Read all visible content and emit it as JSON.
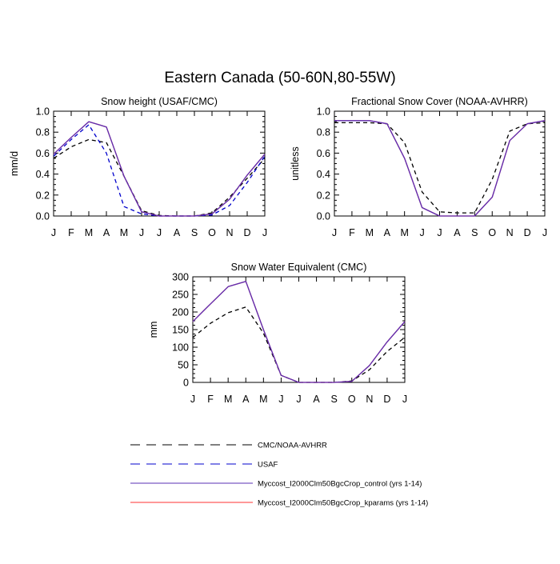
{
  "figure": {
    "title": "Eastern Canada (50-60N,80-55W)"
  },
  "months": [
    "J",
    "F",
    "M",
    "A",
    "M",
    "J",
    "J",
    "A",
    "S",
    "O",
    "N",
    "D",
    "J"
  ],
  "legend": [
    {
      "label": "CMC/NOAA-AVHRR",
      "color": "#000000",
      "style": "dashed"
    },
    {
      "label": "USAF",
      "color": "#0000cc",
      "style": "dashed"
    },
    {
      "label": "Myccost_I2000Clm50BgcCrop_control (yrs 1-14)",
      "color": "#5a2fb5",
      "style": "solid"
    },
    {
      "label": "Myccost_I2000Clm50BgcCrop_kparams (yrs 1-14)",
      "color": "#ff3333",
      "style": "solid"
    }
  ],
  "chart_data": [
    {
      "type": "line",
      "title": "Snow height (USAF/CMC)",
      "xlabel": "",
      "ylabel": "mm/d",
      "ylim": [
        0,
        1.0
      ],
      "yticks": [
        "0.0",
        "0.2",
        "0.4",
        "0.6",
        "0.8",
        "1.0"
      ],
      "ytick_values": [
        0,
        0.2,
        0.4,
        0.6,
        0.8,
        1.0
      ],
      "categories": [
        "J",
        "F",
        "M",
        "A",
        "M",
        "J",
        "J",
        "A",
        "S",
        "O",
        "N",
        "D",
        "J"
      ],
      "series": [
        {
          "name": "CMC/NOAA-AVHRR",
          "color": "#000000",
          "dash": "5,4",
          "values": [
            0.55,
            0.66,
            0.73,
            0.7,
            0.38,
            0.05,
            0.005,
            0.0,
            0.0,
            0.03,
            0.18,
            0.36,
            0.55
          ]
        },
        {
          "name": "USAF",
          "color": "#0000cc",
          "dash": "5,4",
          "values": [
            0.57,
            0.73,
            0.87,
            0.6,
            0.09,
            0.02,
            0.0,
            0.0,
            0.0,
            0.01,
            0.1,
            0.32,
            0.57
          ]
        },
        {
          "name": "Myccost_I2000Clm50BgcCrop_kparams (yrs 1-14)",
          "color": "#ff3333",
          "dash": "",
          "values": [
            0.59,
            0.75,
            0.9,
            0.85,
            0.38,
            0.04,
            0.0,
            0.0,
            0.0,
            0.02,
            0.16,
            0.39,
            0.59
          ]
        },
        {
          "name": "Myccost_I2000Clm50BgcCrop_control (yrs 1-14)",
          "color": "#5a2fb5",
          "dash": "",
          "values": [
            0.59,
            0.75,
            0.9,
            0.85,
            0.38,
            0.04,
            0.0,
            0.0,
            0.0,
            0.02,
            0.16,
            0.39,
            0.59
          ]
        }
      ]
    },
    {
      "type": "line",
      "title": "Fractional Snow Cover (NOAA-AVHRR)",
      "xlabel": "",
      "ylabel": "unitless",
      "ylim": [
        0,
        1.0
      ],
      "yticks": [
        "0.0",
        "0.2",
        "0.4",
        "0.6",
        "0.8",
        "1.0"
      ],
      "ytick_values": [
        0,
        0.2,
        0.4,
        0.6,
        0.8,
        1.0
      ],
      "categories": [
        "J",
        "F",
        "M",
        "A",
        "M",
        "J",
        "J",
        "A",
        "S",
        "O",
        "N",
        "D",
        "J"
      ],
      "series": [
        {
          "name": "CMC/NOAA-AVHRR",
          "color": "#000000",
          "dash": "5,4",
          "values": [
            0.89,
            0.89,
            0.89,
            0.88,
            0.7,
            0.23,
            0.04,
            0.03,
            0.03,
            0.35,
            0.81,
            0.88,
            0.89
          ]
        },
        {
          "name": "Myccost_I2000Clm50BgcCrop_kparams (yrs 1-14)",
          "color": "#ff3333",
          "dash": "",
          "values": [
            0.91,
            0.91,
            0.91,
            0.88,
            0.55,
            0.08,
            0.0,
            0.0,
            0.0,
            0.18,
            0.72,
            0.88,
            0.91
          ]
        },
        {
          "name": "Myccost_I2000Clm50BgcCrop_control (yrs 1-14)",
          "color": "#5a2fb5",
          "dash": "",
          "values": [
            0.91,
            0.91,
            0.91,
            0.88,
            0.55,
            0.08,
            0.0,
            0.0,
            0.0,
            0.18,
            0.72,
            0.88,
            0.91
          ]
        }
      ]
    },
    {
      "type": "line",
      "title": "Snow Water Equivalent (CMC)",
      "xlabel": "",
      "ylabel": "mm",
      "ylim": [
        0,
        300
      ],
      "yticks": [
        "0",
        "50",
        "100",
        "150",
        "200",
        "250",
        "300"
      ],
      "ytick_values": [
        0,
        50,
        100,
        150,
        200,
        250,
        300
      ],
      "categories": [
        "J",
        "F",
        "M",
        "A",
        "M",
        "J",
        "J",
        "A",
        "S",
        "O",
        "N",
        "D",
        "J"
      ],
      "series": [
        {
          "name": "CMC/NOAA-AVHRR",
          "color": "#000000",
          "dash": "5,4",
          "values": [
            128,
            168,
            198,
            214,
            140,
            20,
            0,
            0,
            0,
            4,
            36,
            88,
            128
          ]
        },
        {
          "name": "Myccost_I2000Clm50BgcCrop_kparams (yrs 1-14)",
          "color": "#ff3333",
          "dash": "",
          "values": [
            173,
            223,
            272,
            287,
            150,
            20,
            0,
            0,
            0,
            3,
            48,
            115,
            173
          ]
        },
        {
          "name": "Myccost_I2000Clm50BgcCrop_control (yrs 1-14)",
          "color": "#5a2fb5",
          "dash": "",
          "values": [
            173,
            223,
            272,
            287,
            150,
            20,
            0,
            0,
            0,
            3,
            48,
            115,
            173
          ]
        }
      ]
    }
  ]
}
